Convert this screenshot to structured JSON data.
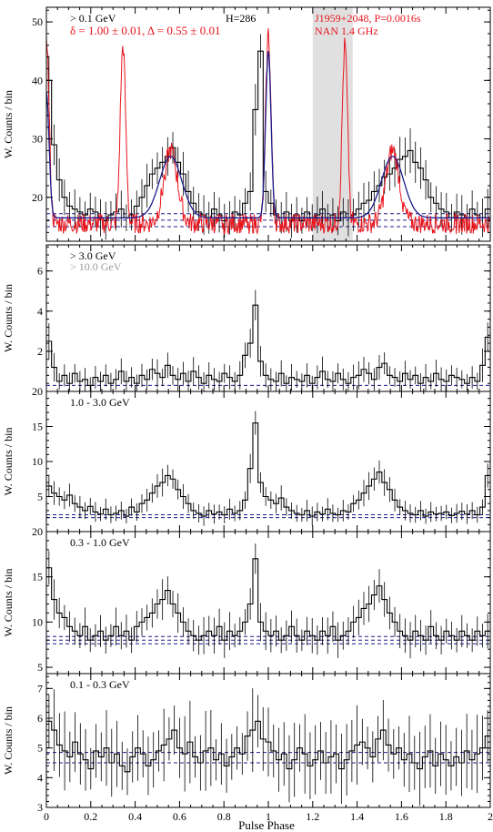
{
  "figure": {
    "x_axis_label": "Pulse Phase",
    "x_ticks": [
      "0",
      "0.2",
      "0.4",
      "0.6",
      "0.8",
      "1",
      "1.2",
      "1.4",
      "1.6",
      "1.8",
      "2"
    ],
    "colors": {
      "axis": "#000000",
      "radio": "#e8141c",
      "fit": "#1c1c8c",
      "background_band": "#e0e0e0",
      "faded_text": "#999999"
    }
  },
  "chart_data": [
    {
      "type": "line",
      "title": "",
      "ylabel": "W. Counts / bin",
      "xlim": [
        0,
        2
      ],
      "ylim": [
        12.5,
        52.5
      ],
      "y_ticks": [
        "20",
        "30",
        "40",
        "50"
      ],
      "annotations": {
        "energy": "> 0.1 GeV",
        "h_test": "H=286",
        "fit_params": "δ = 1.00 ± 0.01, Δ = 0.55 ± 0.01",
        "pulsar": "J1959+2048, P=0.0016s",
        "radio": "NAN 1.4 GHz"
      },
      "shaded_phase": [
        1.2,
        1.38
      ],
      "baselines": [
        15.0,
        16.1,
        17.2
      ],
      "series": [
        {
          "role": "gamma-ray profile",
          "profile": [
            40,
            29,
            23,
            20,
            18.5,
            18,
            17.5,
            17,
            18,
            17.5,
            16.5,
            16,
            17,
            17.5,
            18,
            16.5,
            17,
            18.5,
            20,
            22,
            24,
            25,
            26,
            27,
            28.5,
            26,
            24,
            21,
            19,
            17.5,
            17,
            16.5,
            18,
            17,
            16,
            16.5,
            17.5,
            17,
            19,
            21,
            35,
            45,
            21,
            19,
            17,
            16.5,
            17.5,
            16,
            17,
            16,
            17.5,
            16.5,
            17,
            18,
            16.5,
            17,
            16,
            17.5,
            16.5,
            17,
            18,
            19,
            19.5,
            21,
            22,
            23.5,
            24,
            25,
            26.5,
            27,
            28,
            26,
            25,
            23,
            20,
            19,
            18,
            17.5,
            16.5,
            17.5,
            17,
            16.5,
            18,
            17,
            16.5,
            18
          ]
        },
        {
          "role": "radio profile",
          "peaks": [
            [
              0.0,
              48
            ],
            [
              0.345,
              46
            ],
            [
              0.56,
              28
            ],
            [
              1.0,
              48
            ],
            [
              1.345,
              46
            ],
            [
              1.56,
              28
            ]
          ]
        },
        {
          "role": "model fit",
          "peaks": [
            [
              0.0,
              38
            ],
            [
              0.56,
              27
            ],
            [
              1.0,
              45
            ],
            [
              1.56,
              27
            ]
          ]
        }
      ]
    },
    {
      "type": "line",
      "title": "",
      "ylabel": "W. Counts / bin",
      "xlim": [
        0,
        2
      ],
      "ylim": [
        0,
        7.3
      ],
      "y_ticks": [
        "2",
        "4",
        "6"
      ],
      "annotations": {
        "energy": "> 3.0 GeV",
        "energy_faded": "> 10.0 GeV"
      },
      "baselines": [
        0.3
      ],
      "series": [
        {
          "role": "gamma-ray profile",
          "profile": [
            2.5,
            1.2,
            0.5,
            0.8,
            0.4,
            0.9,
            0.5,
            0.6,
            0.3,
            0.7,
            0.5,
            0.8,
            0.4,
            0.6,
            1.0,
            0.5,
            0.7,
            0.4,
            0.8,
            0.6,
            1.1,
            0.9,
            0.7,
            1.3,
            0.8,
            0.6,
            0.9,
            0.5,
            1.0,
            0.7,
            0.4,
            0.8,
            0.6,
            0.5,
            0.9,
            0.7,
            0.5,
            0.8,
            1.8,
            2.4,
            4.3,
            1.5,
            0.8,
            0.6,
            0.5,
            0.9,
            0.4,
            0.7,
            0.6,
            0.5,
            0.8,
            0.4,
            0.7,
            1.0,
            0.6,
            0.5,
            0.9,
            0.6,
            0.4,
            0.7,
            0.8,
            1.1,
            0.9,
            0.6,
            1.2,
            1.4,
            0.8,
            0.7,
            0.5,
            0.9,
            0.6,
            0.8,
            0.4,
            0.7,
            0.5,
            0.9,
            0.6,
            0.5,
            0.8,
            0.7,
            0.6,
            0.4,
            0.7,
            0.5,
            1.3,
            2.7
          ]
        }
      ]
    },
    {
      "type": "line",
      "title": "",
      "ylabel": "W. Counts / bin",
      "xlim": [
        0,
        2
      ],
      "ylim": [
        0,
        20
      ],
      "y_ticks": [
        "5",
        "10",
        "15",
        "20"
      ],
      "annotations": {
        "energy": "1.0 - 3.0 GeV"
      },
      "baselines": [
        2.0,
        2.4
      ],
      "series": [
        {
          "role": "gamma-ray profile",
          "profile": [
            6.5,
            5.5,
            5.0,
            4.5,
            5.2,
            4.0,
            3.5,
            3.0,
            3.6,
            2.8,
            2.5,
            3.2,
            2.4,
            2.6,
            3.0,
            2.2,
            3.5,
            2.8,
            4.0,
            4.5,
            5.5,
            6.5,
            7.0,
            8.0,
            7.5,
            6.0,
            5.0,
            4.0,
            3.0,
            2.6,
            2.2,
            3.0,
            2.5,
            2.8,
            2.4,
            3.2,
            2.6,
            3.0,
            4.5,
            9.0,
            15.5,
            7.0,
            5.0,
            4.5,
            4.0,
            4.8,
            3.5,
            3.0,
            2.6,
            2.4,
            3.0,
            2.2,
            2.8,
            2.5,
            3.2,
            2.6,
            2.4,
            3.0,
            2.8,
            4.0,
            4.5,
            5.5,
            6.5,
            7.5,
            8.5,
            7.0,
            6.0,
            4.5,
            3.5,
            3.0,
            2.6,
            2.4,
            3.0,
            2.2,
            2.8,
            2.5,
            2.6,
            2.8,
            2.3,
            2.6,
            2.9,
            2.5,
            3.0,
            2.4,
            3.5,
            8.0
          ]
        }
      ]
    },
    {
      "type": "line",
      "title": "",
      "ylabel": "W. Counts / bin",
      "xlim": [
        0,
        2
      ],
      "ylim": [
        4.3,
        20
      ],
      "y_ticks": [
        "5",
        "10",
        "15",
        "20"
      ],
      "annotations": {
        "energy": "0.3 - 1.0 GeV"
      },
      "baselines": [
        7.6,
        8.0,
        8.4
      ],
      "series": [
        {
          "role": "gamma-ray profile",
          "profile": [
            16,
            12.5,
            11,
            10.5,
            9.5,
            9,
            8.5,
            9.5,
            8,
            8.5,
            9,
            8,
            8.5,
            9.5,
            8.5,
            9,
            8,
            9.5,
            10,
            10.5,
            11,
            12,
            12.5,
            13.5,
            12,
            11,
            10,
            9,
            8.5,
            8,
            8.5,
            9,
            8.5,
            9.5,
            8,
            9,
            8.5,
            9,
            10,
            12,
            17,
            10,
            9,
            8.5,
            9,
            8,
            8.5,
            9.5,
            8.5,
            8,
            9,
            8.5,
            8,
            9,
            8.5,
            9.5,
            8,
            8.5,
            9,
            10,
            10.5,
            11.5,
            12,
            13,
            14,
            12.5,
            11,
            10,
            9,
            8.5,
            8,
            9,
            8.5,
            8,
            9.5,
            8.5,
            8,
            9,
            8.5,
            8,
            9,
            8.5,
            8,
            9,
            8.5,
            9
          ]
        }
      ]
    },
    {
      "type": "line",
      "title": "",
      "ylabel": "W. Counts / bin",
      "xlim": [
        0,
        2
      ],
      "ylim": [
        3,
        7.5
      ],
      "y_ticks": [
        "3",
        "4",
        "5",
        "6",
        "7"
      ],
      "annotations": {
        "energy": "0.1 - 0.3 GeV"
      },
      "baselines": [
        4.5,
        4.85
      ],
      "series": [
        {
          "role": "gamma-ray profile",
          "profile": [
            5.9,
            5.6,
            5.1,
            4.9,
            4.7,
            5.2,
            4.8,
            4.6,
            4.3,
            4.9,
            4.7,
            5.0,
            4.5,
            4.8,
            4.4,
            4.2,
            4.7,
            5.0,
            4.8,
            4.4,
            4.6,
            4.9,
            5.1,
            5.3,
            5.6,
            5.0,
            4.8,
            5.2,
            4.7,
            4.5,
            4.9,
            5.0,
            4.6,
            4.8,
            4.4,
            4.7,
            5.0,
            4.8,
            5.4,
            5.6,
            5.9,
            5.3,
            5.2,
            4.9,
            4.6,
            4.8,
            4.3,
            4.6,
            5.0,
            4.8,
            4.4,
            4.6,
            4.9,
            4.5,
            4.7,
            4.8,
            4.3,
            4.6,
            4.9,
            5.1,
            5.2,
            5.0,
            4.7,
            5.3,
            5.6,
            5.1,
            4.8,
            5.0,
            4.6,
            4.8,
            4.5,
            4.3,
            4.7,
            4.9,
            4.4,
            4.8,
            4.6,
            4.4,
            4.7,
            4.5,
            4.9,
            4.6,
            4.8,
            5.0,
            5.4
          ]
        }
      ]
    }
  ]
}
